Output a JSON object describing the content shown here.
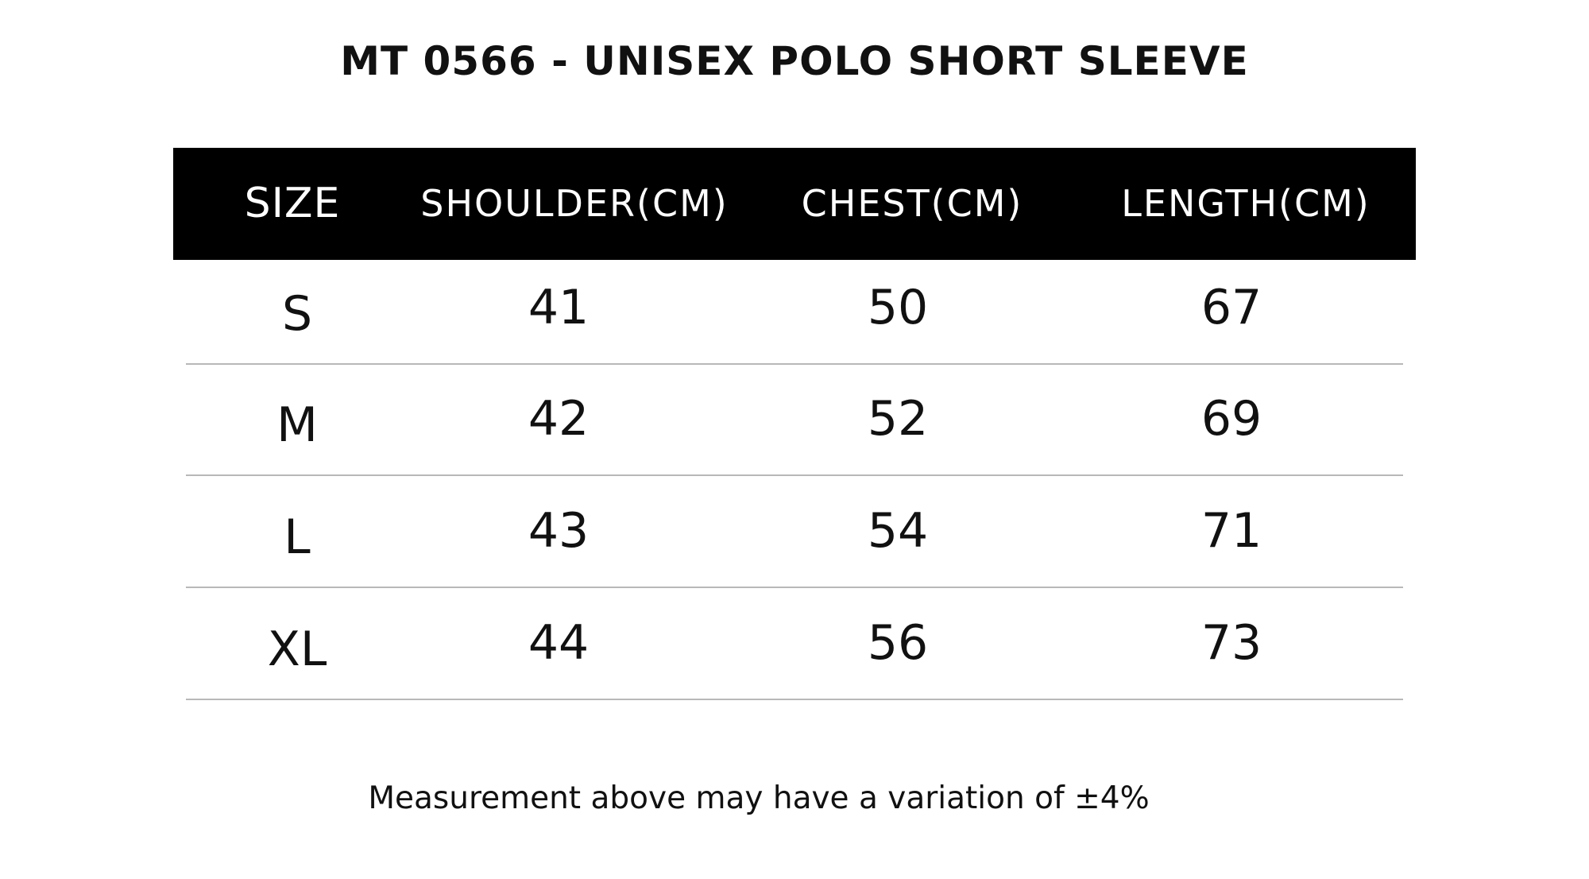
{
  "title": "MT 0566 - UNISEX POLO SHORT SLEEVE",
  "table": {
    "headers": {
      "size": "SIZE",
      "shoulder": "SHOULDER(CM)",
      "chest": "CHEST(CM)",
      "length": "LENGTH(CM)"
    },
    "rows": [
      {
        "size": "S",
        "shoulder": "41",
        "chest": "50",
        "length": "67"
      },
      {
        "size": "M",
        "shoulder": "42",
        "chest": "52",
        "length": "69"
      },
      {
        "size": "L",
        "shoulder": "43",
        "chest": "54",
        "length": "71"
      },
      {
        "size": "XL",
        "shoulder": "44",
        "chest": "56",
        "length": "73"
      }
    ]
  },
  "footnote": "Measurement above may have a variation of ±4%",
  "colors": {
    "header_background": "#000000",
    "header_text": "#ffffff",
    "row_divider": "#b8b8b8",
    "text": "#111111"
  }
}
